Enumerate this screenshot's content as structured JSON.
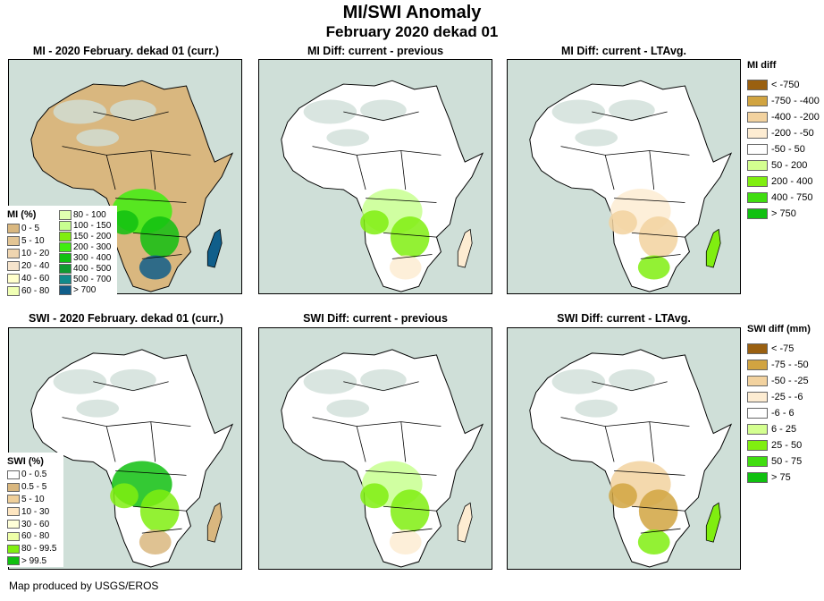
{
  "header": {
    "title": "MI/SWI Anomaly",
    "subtitle": "February 2020 dekad 01"
  },
  "panels": [
    {
      "title": "MI - 2020 February. dekad 01 (curr.)",
      "variable": "MI",
      "kind": "current"
    },
    {
      "title": "MI Diff: current - previous",
      "variable": "MI",
      "kind": "diff-previous"
    },
    {
      "title": "MI Diff: current - LTAvg.",
      "variable": "MI",
      "kind": "diff-ltavg"
    },
    {
      "title": "SWI - 2020 February. dekad 01 (curr.)",
      "variable": "SWI",
      "kind": "current"
    },
    {
      "title": "SWI Diff: current - previous",
      "variable": "SWI",
      "kind": "diff-previous"
    },
    {
      "title": "SWI Diff: current - LTAvg.",
      "variable": "SWI",
      "kind": "diff-ltavg"
    }
  ],
  "legends": {
    "mi_current": {
      "title": "MI (%)",
      "items": [
        {
          "label": "0 - 5",
          "color": "#d9b77f"
        },
        {
          "label": "5 - 10",
          "color": "#e3c594"
        },
        {
          "label": "10 - 20",
          "color": "#efd5b0"
        },
        {
          "label": "20 - 40",
          "color": "#f6e4cc"
        },
        {
          "label": "40 - 60",
          "color": "#ffffcc"
        },
        {
          "label": "60 - 80",
          "color": "#f0ffb4"
        },
        {
          "label": "80 - 100",
          "color": "#e0ffb0"
        },
        {
          "label": "100 - 150",
          "color": "#c8ff90"
        },
        {
          "label": "150 - 200",
          "color": "#80ee10"
        },
        {
          "label": "200 - 300",
          "color": "#40ee10"
        },
        {
          "label": "300 - 400",
          "color": "#10c010"
        },
        {
          "label": "400 - 500",
          "color": "#109a30"
        },
        {
          "label": "500 - 700",
          "color": "#108a8a"
        },
        {
          "label": "> 700",
          "color": "#105e8a"
        }
      ]
    },
    "swi_current": {
      "title": "SWI (%)",
      "items": [
        {
          "label": "0 - 0.5",
          "color": "#ffffff"
        },
        {
          "label": "0.5 - 5",
          "color": "#d9b77f"
        },
        {
          "label": "5 - 10",
          "color": "#efcf9a"
        },
        {
          "label": "10 - 30",
          "color": "#fde5c0"
        },
        {
          "label": "30 - 60",
          "color": "#ffffd8"
        },
        {
          "label": "60 - 80",
          "color": "#eeffa8"
        },
        {
          "label": "80 - 99.5",
          "color": "#80ee10"
        },
        {
          "label": "> 99.5",
          "color": "#10c010"
        }
      ]
    },
    "mi_diff": {
      "title": "MI diff",
      "items": [
        {
          "label": "< -750",
          "color": "#9a6010"
        },
        {
          "label": "-750 - -400",
          "color": "#d1a441"
        },
        {
          "label": "-400 - -200",
          "color": "#f2d29f"
        },
        {
          "label": "-200 - -50",
          "color": "#fdecd2"
        },
        {
          "label": "-50 - 50",
          "color": "#ffffff"
        },
        {
          "label": "50 - 200",
          "color": "#d4ff90"
        },
        {
          "label": "200 - 400",
          "color": "#80ee10"
        },
        {
          "label": "400 - 750",
          "color": "#40dd10"
        },
        {
          "label": "> 750",
          "color": "#10c010"
        }
      ]
    },
    "swi_diff": {
      "title": "SWI diff (mm)",
      "items": [
        {
          "label": "< -75",
          "color": "#9a6010"
        },
        {
          "label": "-75 - -50",
          "color": "#d1a441"
        },
        {
          "label": "-50 - -25",
          "color": "#f2d29f"
        },
        {
          "label": "-25 - -6",
          "color": "#fdecd2"
        },
        {
          "label": "-6 - 6",
          "color": "#ffffff"
        },
        {
          "label": "6 - 25",
          "color": "#d4ff90"
        },
        {
          "label": "25 - 50",
          "color": "#80ee10"
        },
        {
          "label": "50 - 75",
          "color": "#40dd10"
        },
        {
          "label": "> 75",
          "color": "#10c010"
        }
      ]
    }
  },
  "colors": {
    "ocean": "#cfdfd8",
    "land_nodata": "#cfdfd8",
    "border": "#000000"
  },
  "footer": {
    "credit": "Map produced by USGS/EROS"
  }
}
